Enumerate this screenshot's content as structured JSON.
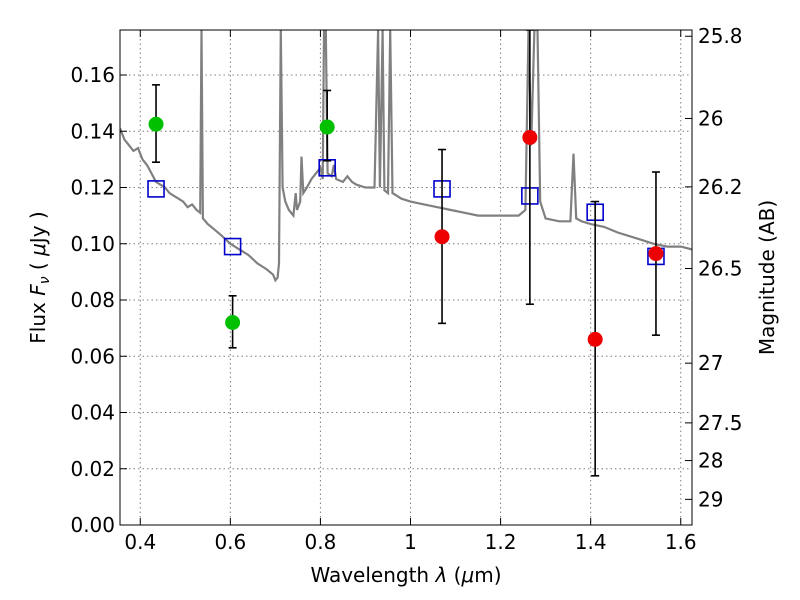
{
  "chart_data": {
    "type": "scatter",
    "title": "",
    "xlabel": "Wavelength  λ (μm)",
    "xlabel_parts": {
      "prefix": "Wavelength  ",
      "lambda": "λ",
      "open": " (",
      "mu": "μ",
      "unit": "m)"
    },
    "ylabel": "Flux  Fν  ( μJy )",
    "ylabel_parts": {
      "prefix": "Flux  ",
      "F": "F",
      "nu": "ν",
      "open": "  ( ",
      "mu": "μ",
      "unit": "Jy )"
    },
    "y2label": "Magnitude (AB)",
    "xlim": [
      0.355,
      1.625
    ],
    "ylim": [
      0.0,
      0.176
    ],
    "grid": true,
    "x_ticks": [
      {
        "v": 0.4,
        "label": "0.4"
      },
      {
        "v": 0.6,
        "label": "0.6"
      },
      {
        "v": 0.8,
        "label": "0.8"
      },
      {
        "v": 1.0,
        "label": "1"
      },
      {
        "v": 1.2,
        "label": "1.2"
      },
      {
        "v": 1.4,
        "label": "1.4"
      },
      {
        "v": 1.6,
        "label": "1.6"
      }
    ],
    "y_ticks": [
      {
        "v": 0.0,
        "label": "0.00"
      },
      {
        "v": 0.02,
        "label": "0.02"
      },
      {
        "v": 0.04,
        "label": "0.04"
      },
      {
        "v": 0.06,
        "label": "0.06"
      },
      {
        "v": 0.08,
        "label": "0.08"
      },
      {
        "v": 0.1,
        "label": "0.10"
      },
      {
        "v": 0.12,
        "label": "0.12"
      },
      {
        "v": 0.14,
        "label": "0.14"
      },
      {
        "v": 0.16,
        "label": "0.16"
      }
    ],
    "y2_ticks": [
      {
        "mag": 25.8,
        "label": "25.8"
      },
      {
        "mag": 26.0,
        "label": "26"
      },
      {
        "mag": 26.2,
        "label": "26.2"
      },
      {
        "mag": 26.5,
        "label": "26.5"
      },
      {
        "mag": 27.0,
        "label": "27"
      },
      {
        "mag": 27.5,
        "label": "27.5"
      },
      {
        "mag": 28.0,
        "label": "28"
      },
      {
        "mag": 29.0,
        "label": "29"
      }
    ],
    "series": [
      {
        "kind": "line",
        "color": "#808080",
        "points": [
          [
            0.355,
            0.141
          ],
          [
            0.365,
            0.137
          ],
          [
            0.375,
            0.135
          ],
          [
            0.385,
            0.133
          ],
          [
            0.395,
            0.134
          ],
          [
            0.405,
            0.13
          ],
          [
            0.415,
            0.128
          ],
          [
            0.425,
            0.125
          ],
          [
            0.435,
            0.122
          ],
          [
            0.445,
            0.121
          ],
          [
            0.455,
            0.12
          ],
          [
            0.465,
            0.118
          ],
          [
            0.475,
            0.117
          ],
          [
            0.485,
            0.116
          ],
          [
            0.495,
            0.115
          ],
          [
            0.505,
            0.113
          ],
          [
            0.515,
            0.114
          ],
          [
            0.525,
            0.112
          ],
          [
            0.533,
            0.111
          ],
          [
            0.536,
            0.176
          ],
          [
            0.539,
            0.109
          ],
          [
            0.55,
            0.107
          ],
          [
            0.565,
            0.105
          ],
          [
            0.58,
            0.103
          ],
          [
            0.6,
            0.1
          ],
          [
            0.62,
            0.098
          ],
          [
            0.64,
            0.096
          ],
          [
            0.66,
            0.093
          ],
          [
            0.68,
            0.091
          ],
          [
            0.695,
            0.089
          ],
          [
            0.7,
            0.087
          ],
          [
            0.705,
            0.088
          ],
          [
            0.708,
            0.093
          ],
          [
            0.712,
            0.176
          ],
          [
            0.716,
            0.12
          ],
          [
            0.722,
            0.115
          ],
          [
            0.73,
            0.112
          ],
          [
            0.74,
            0.11
          ],
          [
            0.745,
            0.118
          ],
          [
            0.748,
            0.112
          ],
          [
            0.755,
            0.115
          ],
          [
            0.758,
            0.131
          ],
          [
            0.762,
            0.118
          ],
          [
            0.77,
            0.12
          ],
          [
            0.78,
            0.123
          ],
          [
            0.79,
            0.125
          ],
          [
            0.8,
            0.127
          ],
          [
            0.805,
            0.123
          ],
          [
            0.808,
            0.176
          ],
          [
            0.812,
            0.176
          ],
          [
            0.816,
            0.125
          ],
          [
            0.825,
            0.124
          ],
          [
            0.83,
            0.128
          ],
          [
            0.835,
            0.123
          ],
          [
            0.85,
            0.122
          ],
          [
            0.86,
            0.124
          ],
          [
            0.87,
            0.122
          ],
          [
            0.88,
            0.121
          ],
          [
            0.9,
            0.12
          ],
          [
            0.92,
            0.12
          ],
          [
            0.928,
            0.176
          ],
          [
            0.932,
            0.12
          ],
          [
            0.938,
            0.176
          ],
          [
            0.942,
            0.119
          ],
          [
            0.95,
            0.118
          ],
          [
            0.955,
            0.176
          ],
          [
            0.96,
            0.118
          ],
          [
            0.98,
            0.116
          ],
          [
            1.0,
            0.115
          ],
          [
            1.03,
            0.114
          ],
          [
            1.06,
            0.113
          ],
          [
            1.09,
            0.112
          ],
          [
            1.12,
            0.111
          ],
          [
            1.15,
            0.11
          ],
          [
            1.18,
            0.11
          ],
          [
            1.21,
            0.11
          ],
          [
            1.24,
            0.11
          ],
          [
            1.255,
            0.112
          ],
          [
            1.262,
            0.176
          ],
          [
            1.268,
            0.135
          ],
          [
            1.275,
            0.176
          ],
          [
            1.282,
            0.176
          ],
          [
            1.288,
            0.115
          ],
          [
            1.3,
            0.109
          ],
          [
            1.33,
            0.108
          ],
          [
            1.355,
            0.108
          ],
          [
            1.362,
            0.132
          ],
          [
            1.368,
            0.109
          ],
          [
            1.38,
            0.108
          ],
          [
            1.4,
            0.107
          ],
          [
            1.43,
            0.106
          ],
          [
            1.46,
            0.104
          ],
          [
            1.5,
            0.102
          ],
          [
            1.54,
            0.1
          ],
          [
            1.57,
            0.099
          ],
          [
            1.6,
            0.099
          ],
          [
            1.625,
            0.098
          ]
        ]
      },
      {
        "kind": "open-square",
        "color": "#0000cc",
        "points": [
          [
            0.435,
            0.1195
          ],
          [
            0.605,
            0.099
          ],
          [
            0.815,
            0.127
          ],
          [
            1.07,
            0.1195
          ],
          [
            1.265,
            0.117
          ],
          [
            1.41,
            0.1112
          ],
          [
            1.545,
            0.0955
          ]
        ]
      },
      {
        "kind": "errorbar-circle",
        "color": "#00c000",
        "points": [
          {
            "x": 0.435,
            "y": 0.1425,
            "lo": 0.129,
            "hi": 0.1565
          },
          {
            "x": 0.605,
            "y": 0.072,
            "lo": 0.063,
            "hi": 0.0815
          },
          {
            "x": 0.815,
            "y": 0.1415,
            "lo": 0.1295,
            "hi": 0.1545
          }
        ]
      },
      {
        "kind": "errorbar-circle",
        "color": "#ee0000",
        "points": [
          {
            "x": 1.07,
            "y": 0.1025,
            "lo": 0.0717,
            "hi": 0.1335
          },
          {
            "x": 1.265,
            "y": 0.1378,
            "lo": 0.0785,
            "hi": 0.176
          },
          {
            "x": 1.41,
            "y": 0.066,
            "lo": 0.0175,
            "hi": 0.115
          },
          {
            "x": 1.545,
            "y": 0.0965,
            "lo": 0.0675,
            "hi": 0.1255
          }
        ]
      }
    ]
  }
}
